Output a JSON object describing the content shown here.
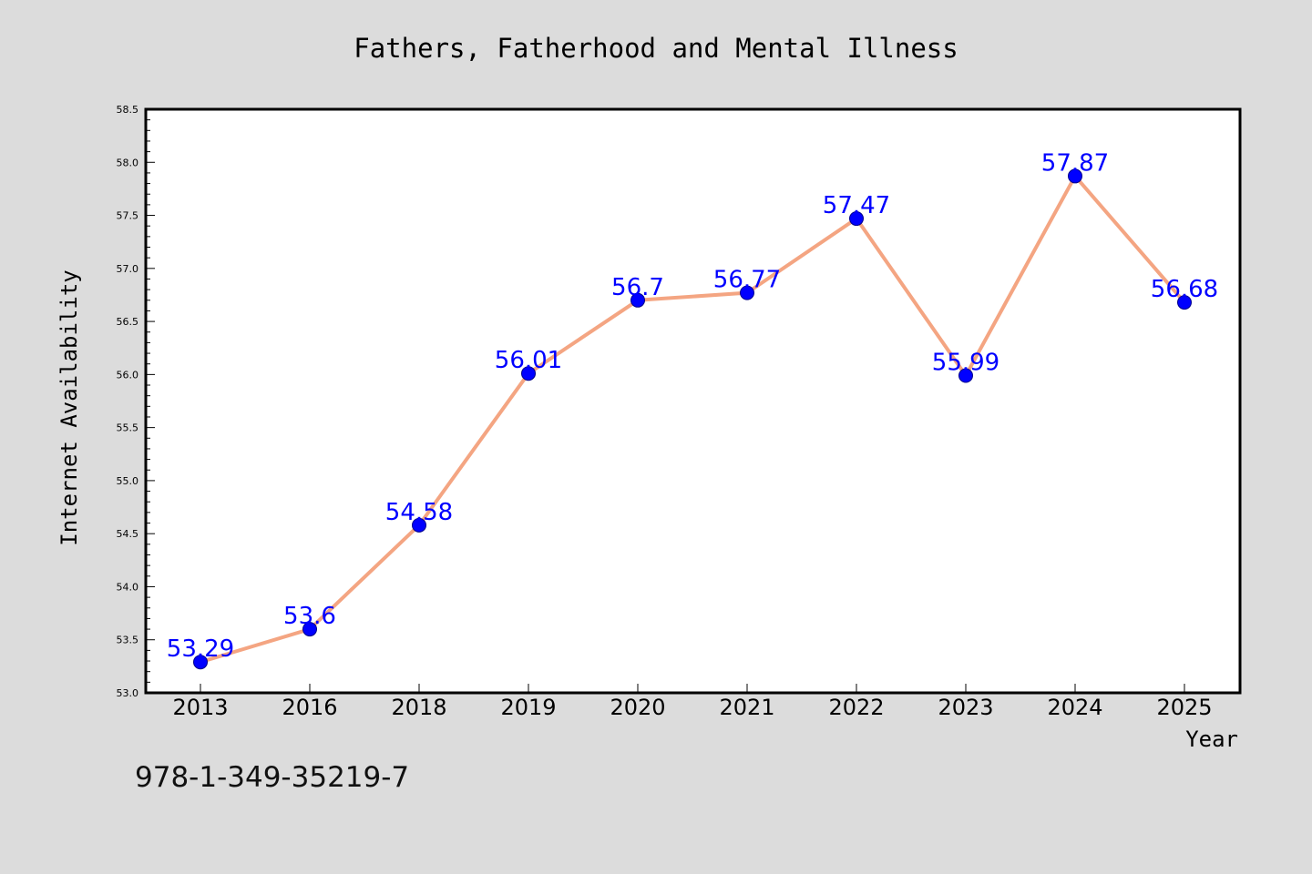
{
  "chart_data": {
    "type": "line",
    "title": "Fathers, Fatherhood and Mental Illness",
    "xlabel": "Year",
    "ylabel": "Internet Availability",
    "categories": [
      "2013",
      "2016",
      "2018",
      "2019",
      "2020",
      "2021",
      "2022",
      "2023",
      "2024",
      "2025"
    ],
    "values": [
      53.29,
      53.6,
      54.58,
      56.01,
      56.7,
      56.77,
      57.47,
      55.99,
      57.87,
      56.68
    ],
    "data_labels": [
      "53.29",
      "53.6",
      "54.58",
      "56.01",
      "56.7",
      "56.77",
      "57.47",
      "55.99",
      "57.87",
      "56.68"
    ],
    "ylim": [
      53.0,
      58.5
    ],
    "yticks": [
      "53.0",
      "53.5",
      "54.0",
      "54.5",
      "55.0",
      "55.5",
      "56.0",
      "56.5",
      "57.0",
      "57.5",
      "58.0",
      "58.5"
    ],
    "grid": false,
    "legend": "none",
    "colors": {
      "line": "#f4a582",
      "marker": "#0000ff",
      "marker_edge": "#00008b",
      "label": "#0000ff",
      "background": "#dcdcdc",
      "plot_background": "#ffffff"
    }
  },
  "annotation": {
    "isbn": "978-1-349-35219-7"
  }
}
